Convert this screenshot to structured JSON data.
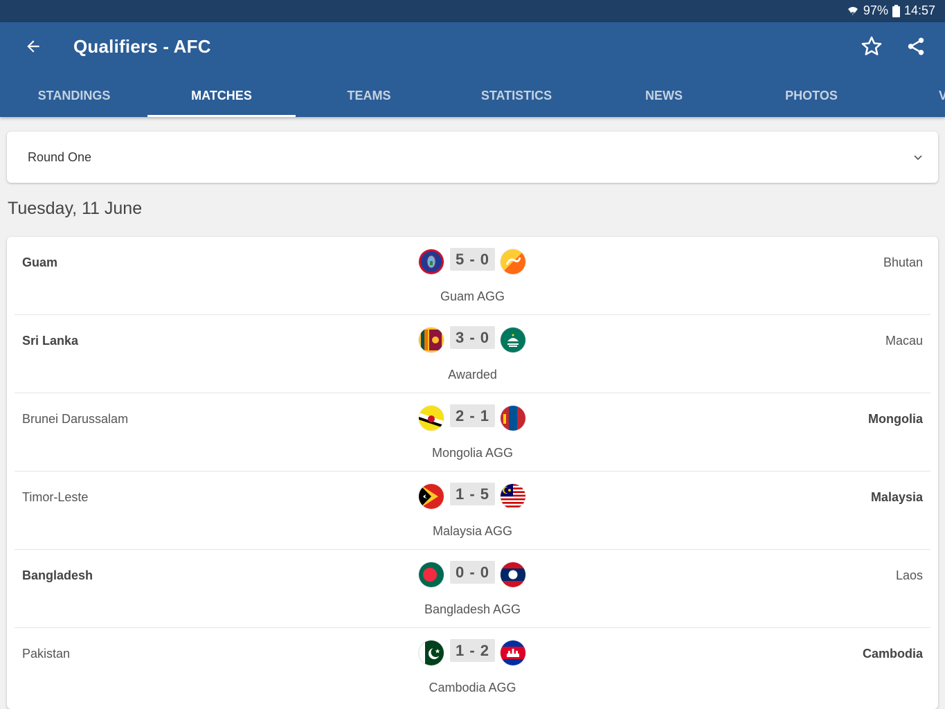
{
  "status_bar": {
    "battery": "97%",
    "time": "14:57"
  },
  "header": {
    "title": "Qualifiers - AFC",
    "back_icon": "arrow-back-icon",
    "favorite_icon": "star-outline-icon",
    "share_icon": "share-icon"
  },
  "tabs": [
    {
      "label": "STANDINGS"
    },
    {
      "label": "MATCHES",
      "active": true
    },
    {
      "label": "TEAMS"
    },
    {
      "label": "STATISTICS"
    },
    {
      "label": "NEWS"
    },
    {
      "label": "PHOTOS"
    },
    {
      "label": "V"
    }
  ],
  "round_select": {
    "value": "Round One"
  },
  "date_heading": "Tuesday, 11 June",
  "matches": [
    {
      "home": "Guam",
      "away": "Bhutan",
      "score": "5 - 0",
      "result": "Guam AGG",
      "home_flag": "guam-flag",
      "away_flag": "bhutan-flag"
    },
    {
      "home": "Sri Lanka",
      "away": "Macau",
      "score": "3 - 0",
      "result": "Awarded",
      "home_flag": "sri-lanka-flag",
      "away_flag": "macau-flag"
    },
    {
      "home": "Brunei Darussalam",
      "away": "Mongolia",
      "score": "2 - 1",
      "result": "Mongolia AGG",
      "home_flag": "brunei-flag",
      "away_flag": "mongolia-flag"
    },
    {
      "home": "Timor-Leste",
      "away": "Malaysia",
      "score": "1 - 5",
      "result": "Malaysia AGG",
      "home_flag": "timor-leste-flag",
      "away_flag": "malaysia-flag"
    },
    {
      "home": "Bangladesh",
      "away": "Laos",
      "score": "0 - 0",
      "result": "Bangladesh AGG",
      "home_flag": "bangladesh-flag",
      "away_flag": "laos-flag"
    },
    {
      "home": "Pakistan",
      "away": "Cambodia",
      "score": "1 - 2",
      "result": "Cambodia AGG",
      "home_flag": "pakistan-flag",
      "away_flag": "cambodia-flag"
    }
  ],
  "colors": {
    "status_bar": "#1f3f65",
    "app_bar": "#2b5d96",
    "background": "#f1f1f1"
  }
}
